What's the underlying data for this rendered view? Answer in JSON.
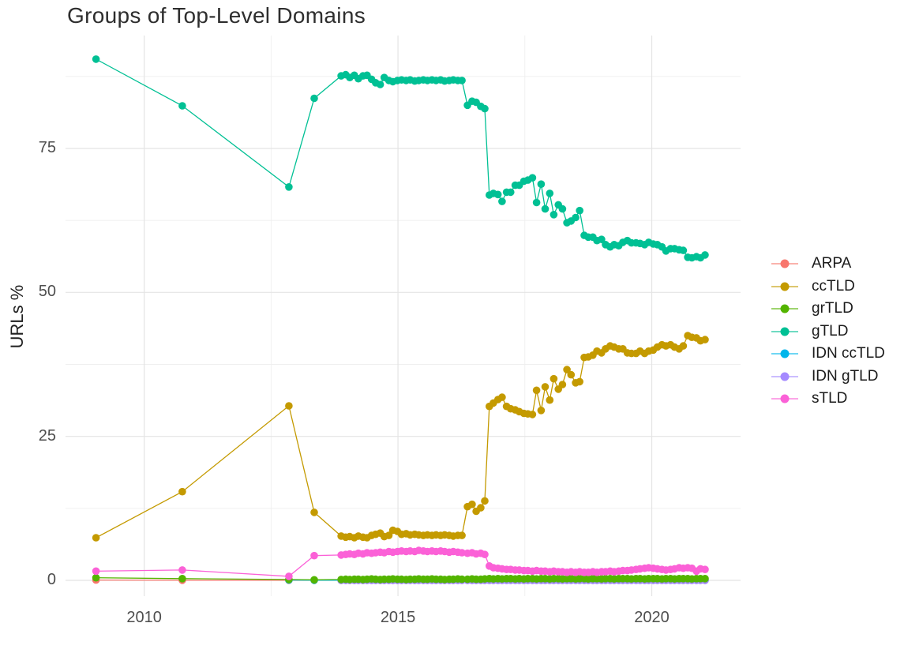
{
  "chart_data": {
    "type": "line",
    "title": "Groups of Top-Level Domains",
    "xlabel": "",
    "ylabel": "URLs %",
    "x_ticks": [
      "2010",
      "2015",
      "2020"
    ],
    "x_tick_values": [
      2010,
      2015,
      2020
    ],
    "x_minor_gridlines": [
      2012.5,
      2017.5
    ],
    "y_ticks": [
      "0",
      "25",
      "50",
      "75"
    ],
    "y_tick_values": [
      0,
      25,
      50,
      75
    ],
    "y_minor_gridlines": [
      12.5,
      37.5,
      62.5,
      87.5
    ],
    "xlim": [
      2008.45,
      2021.75
    ],
    "ylim": [
      -2.74,
      94.6
    ],
    "grid": true,
    "legend_position": "right",
    "draw_order": [
      "ARPA",
      "IDN ccTLD",
      "IDN gTLD",
      "grTLD",
      "ccTLD",
      "gTLD",
      "sTLD"
    ],
    "x_early": [
      2009.05,
      2010.75,
      2012.85,
      2013.35
    ],
    "x_dense": [
      2013.88,
      2013.97,
      2014.05,
      2014.14,
      2014.22,
      2014.31,
      2014.39,
      2014.48,
      2014.56,
      2014.65,
      2014.73,
      2014.82,
      2014.9,
      2014.99,
      2015.07,
      2015.16,
      2015.24,
      2015.33,
      2015.41,
      2015.5,
      2015.58,
      2015.67,
      2015.75,
      2015.84,
      2015.92,
      2016.01,
      2016.09,
      2016.18,
      2016.26,
      2016.37,
      2016.46,
      2016.54,
      2016.63,
      2016.71,
      2016.8,
      2016.88,
      2016.97,
      2017.05,
      2017.14,
      2017.22,
      2017.31,
      2017.39,
      2017.48,
      2017.56,
      2017.65,
      2017.73,
      2017.82,
      2017.9,
      2017.99,
      2018.07,
      2018.16,
      2018.24,
      2018.33,
      2018.41,
      2018.5,
      2018.58,
      2018.67,
      2018.75,
      2018.84,
      2018.92,
      2019.01,
      2019.09,
      2019.18,
      2019.26,
      2019.35,
      2019.43,
      2019.52,
      2019.6,
      2019.69,
      2019.77,
      2019.86,
      2019.94,
      2020.03,
      2020.11,
      2020.2,
      2020.28,
      2020.37,
      2020.45,
      2020.54,
      2020.62,
      2020.71,
      2020.79,
      2020.88,
      2020.96,
      2021.05
    ],
    "series": [
      {
        "name": "ARPA",
        "color": "#F8766D",
        "early": [
          0.05,
          0.02,
          0.02,
          0.02
        ],
        "dense_const": 0.02
      },
      {
        "name": "ccTLD",
        "color": "#C49A00",
        "early": [
          7.4,
          15.4,
          30.3,
          11.8
        ],
        "dense": [
          7.7,
          7.5,
          7.6,
          7.4,
          7.7,
          7.5,
          7.4,
          7.8,
          8.0,
          8.2,
          7.6,
          7.8,
          8.7,
          8.5,
          8.0,
          8.1,
          7.9,
          8.0,
          7.9,
          7.8,
          7.9,
          7.8,
          7.9,
          7.8,
          7.9,
          7.8,
          7.7,
          7.8,
          7.8,
          12.8,
          13.2,
          12.0,
          12.6,
          13.8,
          30.2,
          30.8,
          31.4,
          31.8,
          30.2,
          29.8,
          29.6,
          29.3,
          29.0,
          28.9,
          28.8,
          33.0,
          29.5,
          33.6,
          31.3,
          35.0,
          33.2,
          34.0,
          36.6,
          35.7,
          34.3,
          34.5,
          38.7,
          38.8,
          39.1,
          39.8,
          39.5,
          40.2,
          40.7,
          40.5,
          40.2,
          40.2,
          39.5,
          39.4,
          39.4,
          39.8,
          39.4,
          39.8,
          40.0,
          40.5,
          40.9,
          40.7,
          40.9,
          40.5,
          40.2,
          40.7,
          42.5,
          42.2,
          42.1,
          41.6,
          41.8
        ]
      },
      {
        "name": "grTLD",
        "color": "#53B400",
        "early": [
          0.45,
          0.3,
          0.15,
          0.1
        ],
        "dense": [
          0.15,
          0.2,
          0.15,
          0.2,
          0.2,
          0.15,
          0.2,
          0.25,
          0.2,
          0.15,
          0.2,
          0.2,
          0.25,
          0.2,
          0.2,
          0.15,
          0.2,
          0.2,
          0.25,
          0.2,
          0.2,
          0.25,
          0.2,
          0.2,
          0.15,
          0.2,
          0.2,
          0.25,
          0.2,
          0.2,
          0.25,
          0.2,
          0.2,
          0.25,
          0.3,
          0.25,
          0.3,
          0.25,
          0.3,
          0.3,
          0.25,
          0.3,
          0.25,
          0.3,
          0.3,
          0.25,
          0.3,
          0.3,
          0.25,
          0.3,
          0.3,
          0.25,
          0.3,
          0.3,
          0.25,
          0.3,
          0.3,
          0.25,
          0.3,
          0.3,
          0.25,
          0.3,
          0.3,
          0.25,
          0.3,
          0.3,
          0.3,
          0.25,
          0.3,
          0.3,
          0.25,
          0.3,
          0.3,
          0.3,
          0.25,
          0.3,
          0.3,
          0.25,
          0.3,
          0.3,
          0.3,
          0.25,
          0.3,
          0.3,
          0.3
        ]
      },
      {
        "name": "gTLD",
        "color": "#00C094",
        "early": [
          90.5,
          82.4,
          68.3,
          83.7
        ],
        "dense": [
          87.6,
          87.8,
          87.3,
          87.7,
          87.1,
          87.6,
          87.7,
          87.0,
          86.4,
          86.1,
          87.3,
          86.8,
          86.6,
          86.8,
          86.9,
          86.8,
          86.9,
          86.7,
          86.8,
          86.9,
          86.8,
          86.9,
          86.8,
          86.9,
          86.7,
          86.8,
          86.9,
          86.8,
          86.8,
          82.5,
          83.2,
          83.0,
          82.3,
          81.9,
          66.9,
          67.2,
          67.0,
          65.8,
          67.4,
          67.4,
          68.6,
          68.6,
          69.3,
          69.5,
          69.9,
          65.6,
          68.8,
          64.5,
          67.2,
          63.5,
          65.2,
          64.5,
          62.1,
          62.4,
          63.0,
          64.2,
          59.9,
          59.6,
          59.6,
          59.0,
          59.2,
          58.3,
          57.9,
          58.3,
          58.1,
          58.7,
          59.0,
          58.6,
          58.6,
          58.5,
          58.3,
          58.7,
          58.4,
          58.3,
          57.9,
          57.2,
          57.6,
          57.6,
          57.4,
          57.3,
          56.1,
          56.0,
          56.2,
          56.0,
          56.5
        ]
      },
      {
        "name": "IDN ccTLD",
        "color": "#00B6EB",
        "early": [
          null,
          null,
          0.05,
          0.02
        ],
        "dense_const": 0.03
      },
      {
        "name": "IDN gTLD",
        "color": "#A58AFF",
        "early": [
          null,
          null,
          null,
          null
        ],
        "dense_const": 0.0
      },
      {
        "name": "sTLD",
        "color": "#FB61D7",
        "early": [
          1.6,
          1.8,
          0.7,
          4.3
        ],
        "dense": [
          4.4,
          4.5,
          4.6,
          4.5,
          4.7,
          4.6,
          4.8,
          4.7,
          4.8,
          4.9,
          4.8,
          5.0,
          4.9,
          5.0,
          5.1,
          5.0,
          5.1,
          5.0,
          5.2,
          5.1,
          5.0,
          5.1,
          5.0,
          5.1,
          5.0,
          4.9,
          5.0,
          4.9,
          4.8,
          4.7,
          4.8,
          4.6,
          4.7,
          4.5,
          2.5,
          2.2,
          2.1,
          2.0,
          1.9,
          1.9,
          1.8,
          1.8,
          1.7,
          1.7,
          1.6,
          1.7,
          1.6,
          1.6,
          1.5,
          1.6,
          1.5,
          1.5,
          1.4,
          1.5,
          1.4,
          1.5,
          1.4,
          1.4,
          1.5,
          1.4,
          1.5,
          1.5,
          1.6,
          1.5,
          1.6,
          1.7,
          1.7,
          1.8,
          1.9,
          2.0,
          2.1,
          2.2,
          2.1,
          2.0,
          1.9,
          1.8,
          1.9,
          2.0,
          2.2,
          2.1,
          2.2,
          2.1,
          1.6,
          2.0,
          1.9
        ]
      }
    ],
    "style": {
      "major_grid_color": "#e4e4e4",
      "minor_grid_color": "#efefef",
      "background": "#ffffff"
    }
  }
}
